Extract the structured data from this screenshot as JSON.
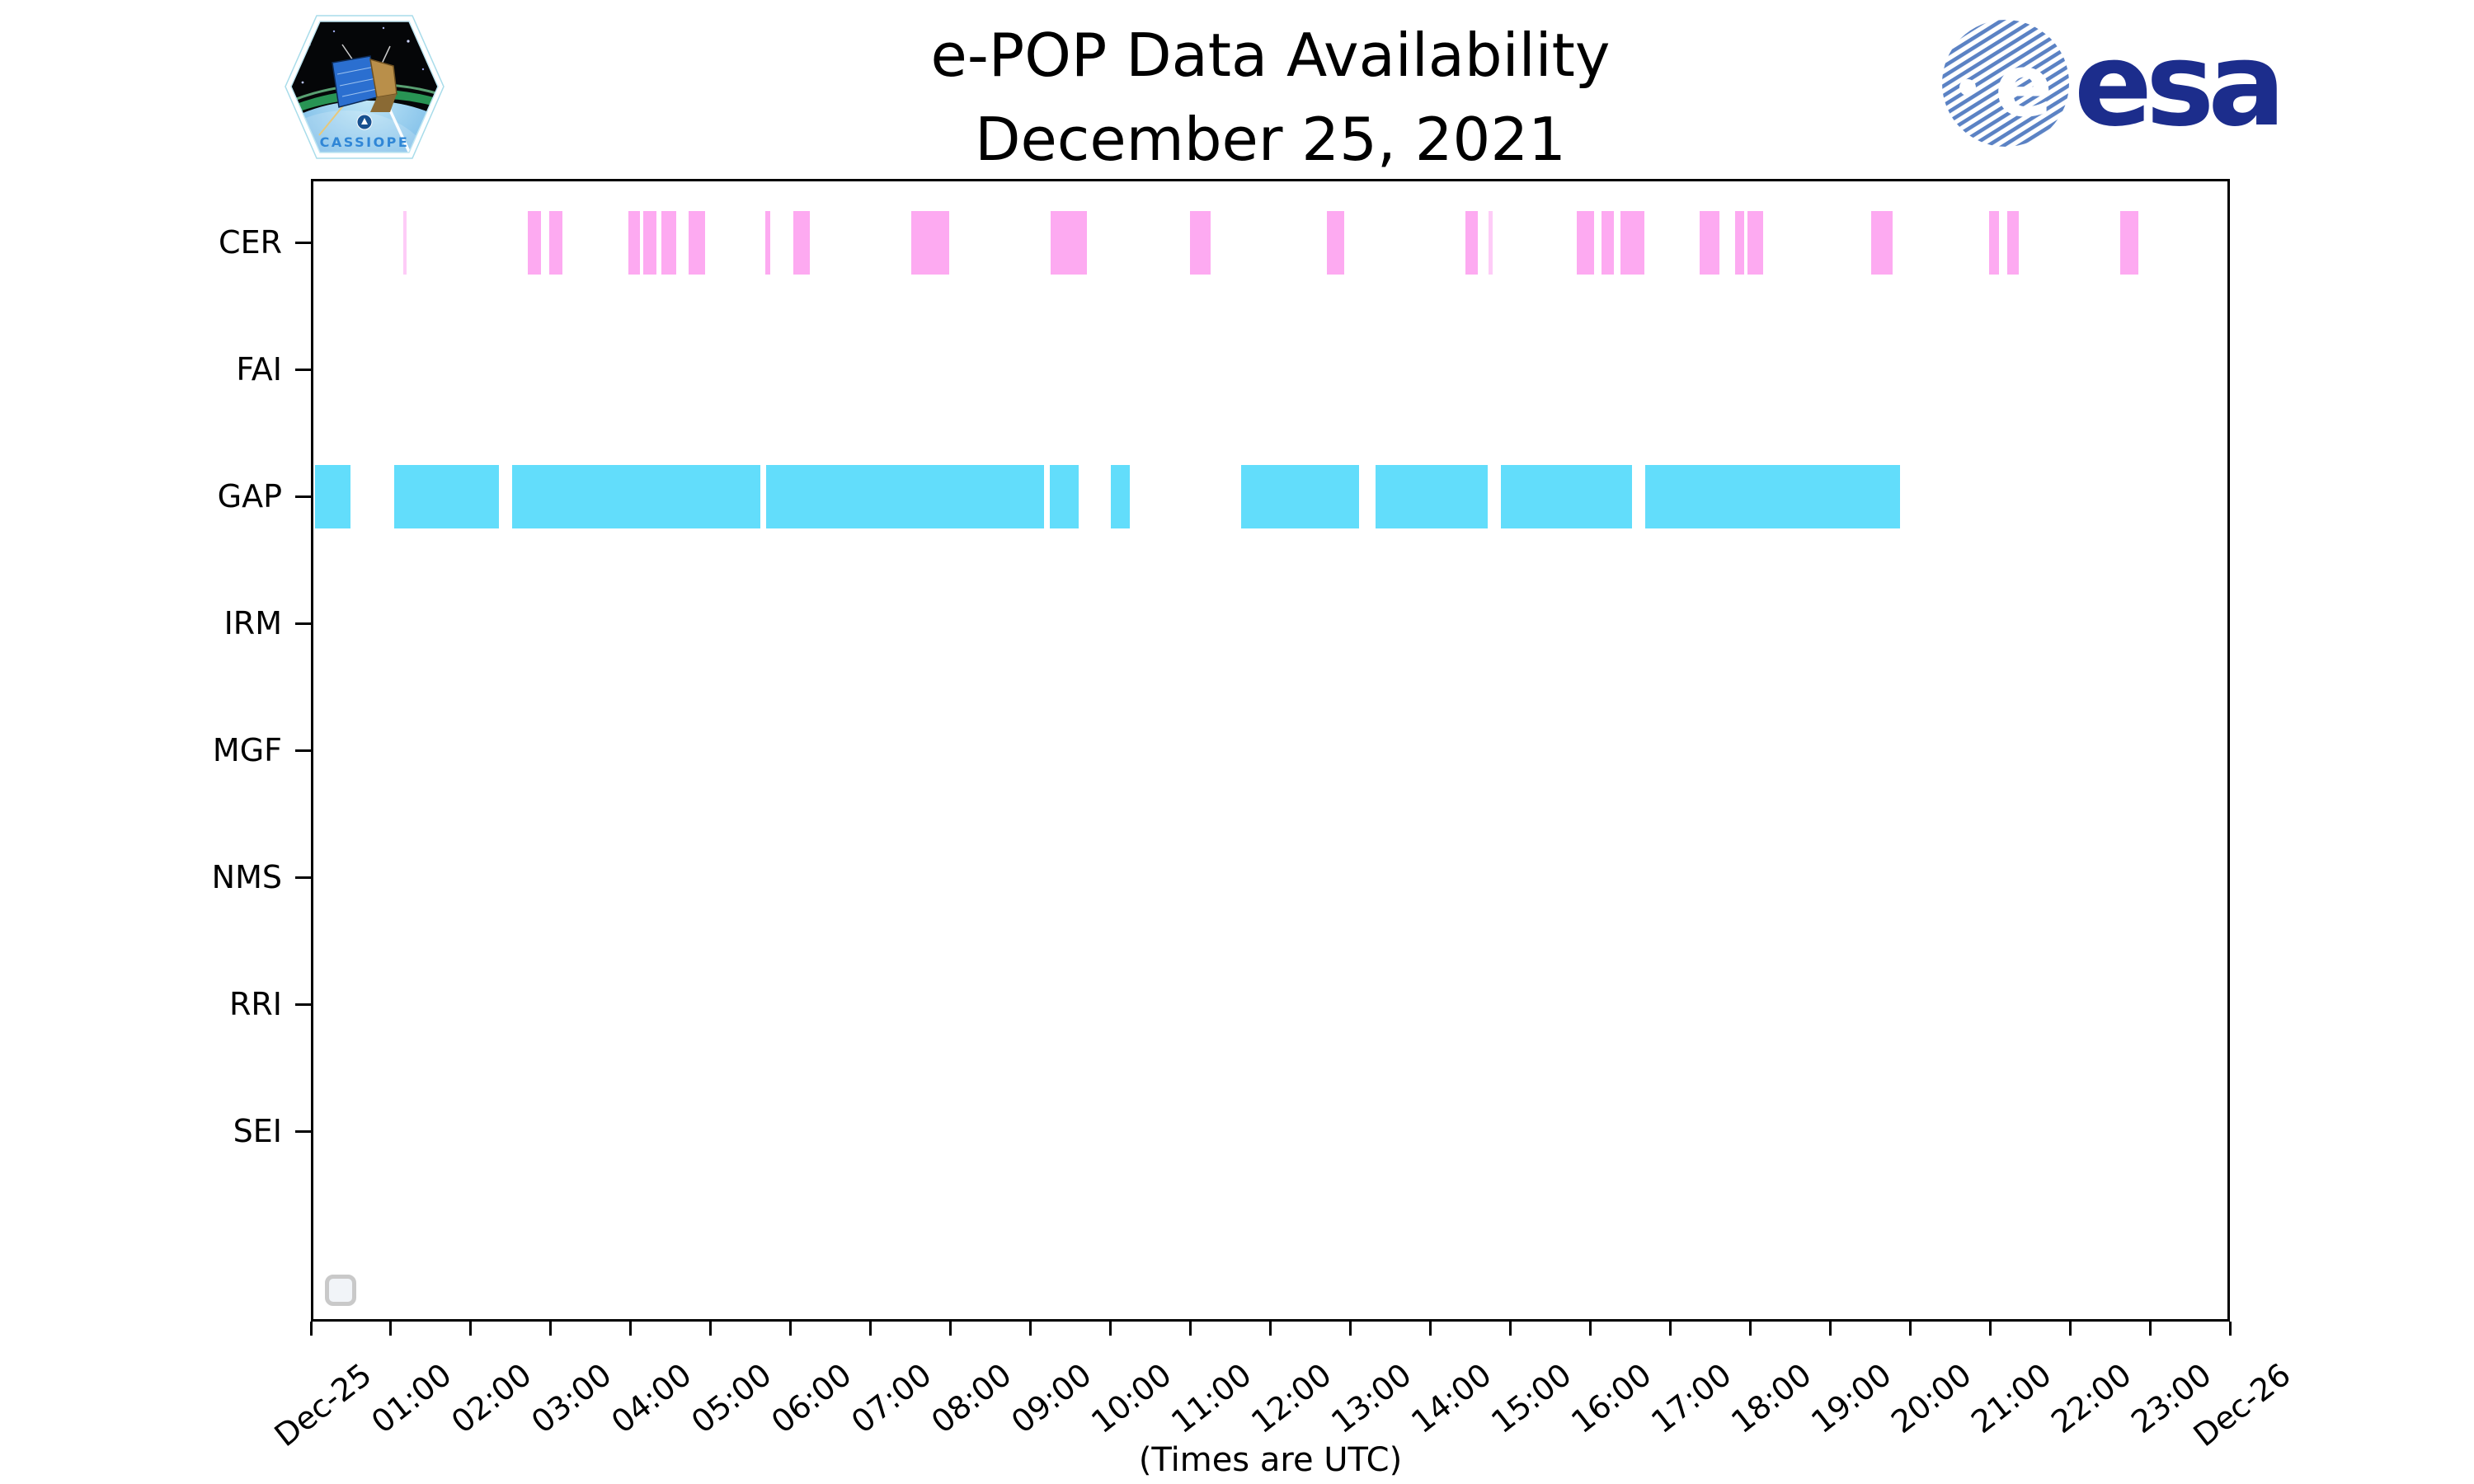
{
  "title": {
    "line1": "e-POP Data Availability",
    "line2": "December 25, 2021"
  },
  "logos": {
    "cassiope": {
      "text": "CASSIOPE"
    },
    "esa": {
      "text": "esa"
    }
  },
  "footer_note": "(Times are UTC)",
  "widget": {
    "type": "checkbox",
    "checked": false
  },
  "colors": {
    "cer_bar": "#fdaaf1",
    "gap_bar": "#62ddfb",
    "esa_navy": "#1c2d8c",
    "esa_globe_blue": "#5b82c4",
    "cassiope_text_blue": "#2f86d6",
    "widget_border": "#c9c9c9",
    "widget_fill": "#f1f4f8",
    "axis": "#000000"
  },
  "chart_data": {
    "type": "timeline",
    "title": "e-POP Data Availability",
    "subtitle": "December 25, 2021",
    "xlabel": "(Times are UTC)",
    "x_range_hours": [
      0,
      24
    ],
    "x_tick_labels": [
      "Dec-25",
      "01:00",
      "02:00",
      "03:00",
      "04:00",
      "05:00",
      "06:00",
      "07:00",
      "08:00",
      "09:00",
      "10:00",
      "11:00",
      "12:00",
      "13:00",
      "14:00",
      "15:00",
      "16:00",
      "17:00",
      "18:00",
      "19:00",
      "20:00",
      "21:00",
      "22:00",
      "23:00",
      "Dec-26"
    ],
    "x_tick_rotation_deg": 38,
    "grid": false,
    "legend": false,
    "rows": [
      "CER",
      "FAI",
      "GAP",
      "IRM",
      "MGF",
      "NMS",
      "RRI",
      "SEI"
    ],
    "series": [
      {
        "row": "CER",
        "color": "#fdaaf1",
        "intervals_hours": [
          [
            1.13,
            1.17
          ],
          [
            2.69,
            2.85
          ],
          [
            2.96,
            3.12
          ],
          [
            3.95,
            4.1
          ],
          [
            4.14,
            4.3
          ],
          [
            4.36,
            4.55
          ],
          [
            4.71,
            4.91
          ],
          [
            5.67,
            5.73
          ],
          [
            6.02,
            6.23
          ],
          [
            7.5,
            7.97
          ],
          [
            9.24,
            9.7
          ],
          [
            10.99,
            11.25
          ],
          [
            12.71,
            12.93
          ],
          [
            14.45,
            14.6
          ],
          [
            14.74,
            14.79
          ],
          [
            15.84,
            16.06
          ],
          [
            16.15,
            16.31
          ],
          [
            16.39,
            16.69
          ],
          [
            17.38,
            17.63
          ],
          [
            17.83,
            17.94
          ],
          [
            17.98,
            18.18
          ],
          [
            19.53,
            19.8
          ],
          [
            21.01,
            21.14
          ],
          [
            21.24,
            21.38
          ],
          [
            22.66,
            22.88
          ]
        ]
      },
      {
        "row": "GAP",
        "color": "#62ddfb",
        "intervals_hours": [
          [
            0.02,
            0.47
          ],
          [
            1.01,
            2.33
          ],
          [
            2.49,
            5.6
          ],
          [
            5.68,
            9.16
          ],
          [
            9.23,
            9.6
          ],
          [
            10.0,
            10.24
          ],
          [
            11.63,
            13.11
          ],
          [
            13.32,
            14.72
          ],
          [
            14.89,
            16.53
          ],
          [
            16.7,
            19.9
          ]
        ]
      }
    ]
  }
}
